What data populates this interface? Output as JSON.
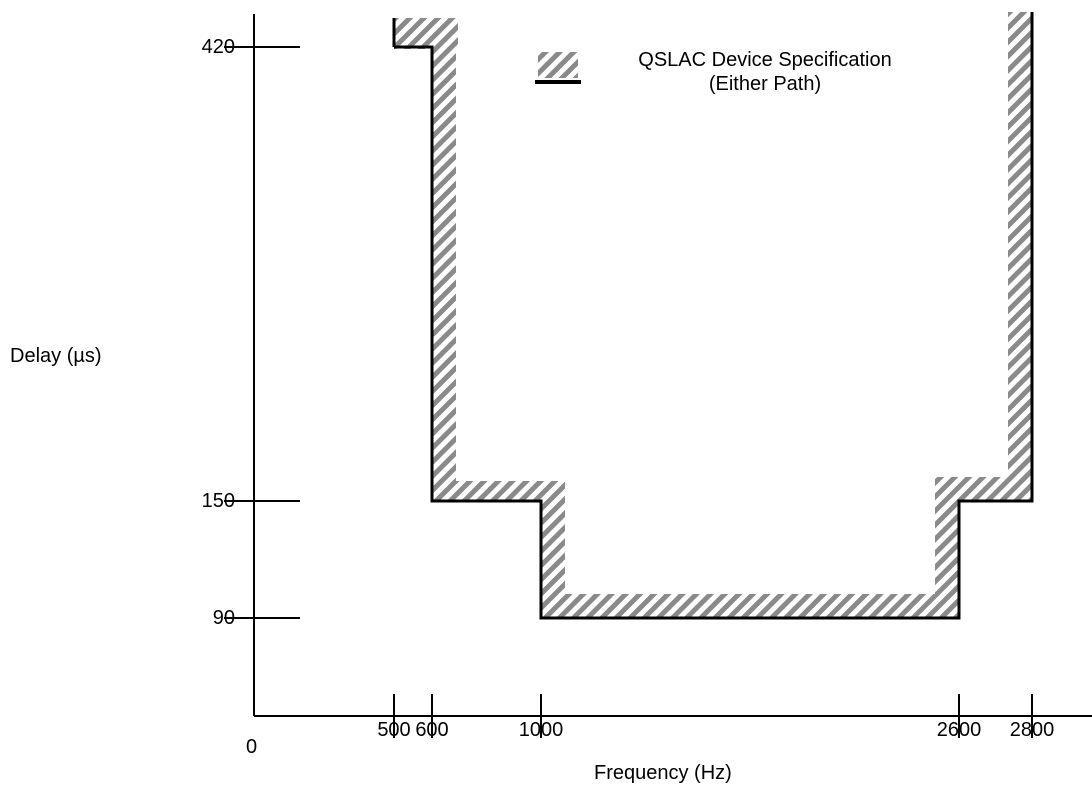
{
  "chart_data": {
    "type": "line",
    "title": "",
    "xlabel": "Frequency (Hz)",
    "ylabel": "Delay (µs)",
    "origin_label": "0",
    "x_ticks": [
      500,
      600,
      1000,
      2600,
      2800
    ],
    "x_tick_labels": [
      "500",
      "600",
      "1000",
      "2600",
      "2800"
    ],
    "y_ticks": [
      90,
      150,
      420
    ],
    "y_tick_labels": [
      "90",
      "150",
      "420"
    ],
    "legend": {
      "line1": "QSLAC Device Specification",
      "line2": "(Either Path)",
      "placement": "top-center"
    },
    "series": [
      {
        "name": "QSLAC Device Specification (Either Path)",
        "style": "hatched band above boundary line",
        "points": [
          {
            "x": 500,
            "y": 420
          },
          {
            "x": 600,
            "y": 420
          },
          {
            "x": 600,
            "y": 150
          },
          {
            "x": 1000,
            "y": 150
          },
          {
            "x": 1000,
            "y": 90
          },
          {
            "x": 2600,
            "y": 90
          },
          {
            "x": 2600,
            "y": 150
          },
          {
            "x": 2800,
            "y": 150
          },
          {
            "x": 2800,
            "y": 420
          }
        ]
      }
    ],
    "grid": false,
    "colors": {
      "line": "#000000",
      "hatch_light": "#ffffff",
      "hatch_dark": "#808080"
    }
  }
}
